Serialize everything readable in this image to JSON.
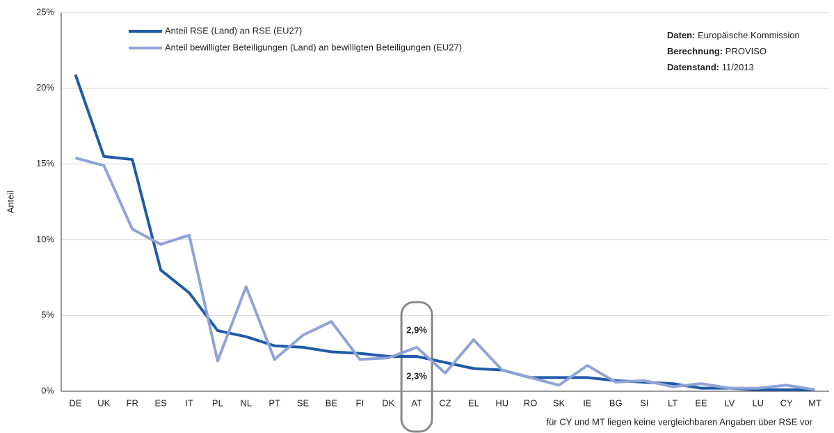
{
  "chart_data": {
    "type": "line",
    "y_label": "Anteil",
    "categories": [
      "DE",
      "UK",
      "FR",
      "ES",
      "IT",
      "PL",
      "NL",
      "PT",
      "SE",
      "BE",
      "FI",
      "DK",
      "AT",
      "CZ",
      "EL",
      "HU",
      "RO",
      "SK",
      "IE",
      "BG",
      "SI",
      "LT",
      "EE",
      "LV",
      "LU",
      "CY",
      "MT"
    ],
    "series": [
      {
        "name": "Anteil RSE (Land) an RSE (EU27)",
        "color": "#1f5ba8",
        "values": [
          20.9,
          15.5,
          15.3,
          8.0,
          6.5,
          4.0,
          3.6,
          3.0,
          2.9,
          2.6,
          2.5,
          2.3,
          2.3,
          1.9,
          1.5,
          1.4,
          0.9,
          0.9,
          0.9,
          0.7,
          0.6,
          0.5,
          0.2,
          0.2,
          0.1,
          0.1,
          0.1
        ]
      },
      {
        "name": "Anteil bewilligter Beteiligungen (Land) an bewilligten Beteiligungen (EU27)",
        "color": "#8fa3d6",
        "values": [
          15.4,
          14.9,
          10.7,
          9.7,
          10.3,
          2.0,
          6.9,
          2.1,
          3.7,
          4.6,
          2.1,
          2.2,
          2.9,
          1.2,
          3.4,
          1.4,
          0.9,
          0.4,
          1.7,
          0.6,
          0.7,
          0.3,
          0.5,
          0.2,
          0.2,
          0.4,
          0.1
        ]
      }
    ],
    "ylim": [
      0,
      25
    ],
    "yticks": [
      {
        "value": 0,
        "label": "0%"
      },
      {
        "value": 5,
        "label": "5%"
      },
      {
        "value": 10,
        "label": "10%"
      },
      {
        "value": 15,
        "label": "15%"
      },
      {
        "value": 20,
        "label": "20%"
      },
      {
        "value": 25,
        "label": "25%"
      }
    ],
    "grid": true,
    "legend": "top-left",
    "annotations": [
      {
        "text": "2,9%",
        "category": "AT"
      },
      {
        "text": "2,3%",
        "category": "AT"
      }
    ],
    "info": [
      {
        "label": "Daten:",
        "text": "Europäische Kommission"
      },
      {
        "label": "Berechnung:",
        "text": "PROVISO"
      },
      {
        "label": "Datenstand:",
        "text": "11/2013"
      }
    ],
    "footnote": "für CY und MT liegen keine vergleichbaren Angaben über RSE vor"
  }
}
